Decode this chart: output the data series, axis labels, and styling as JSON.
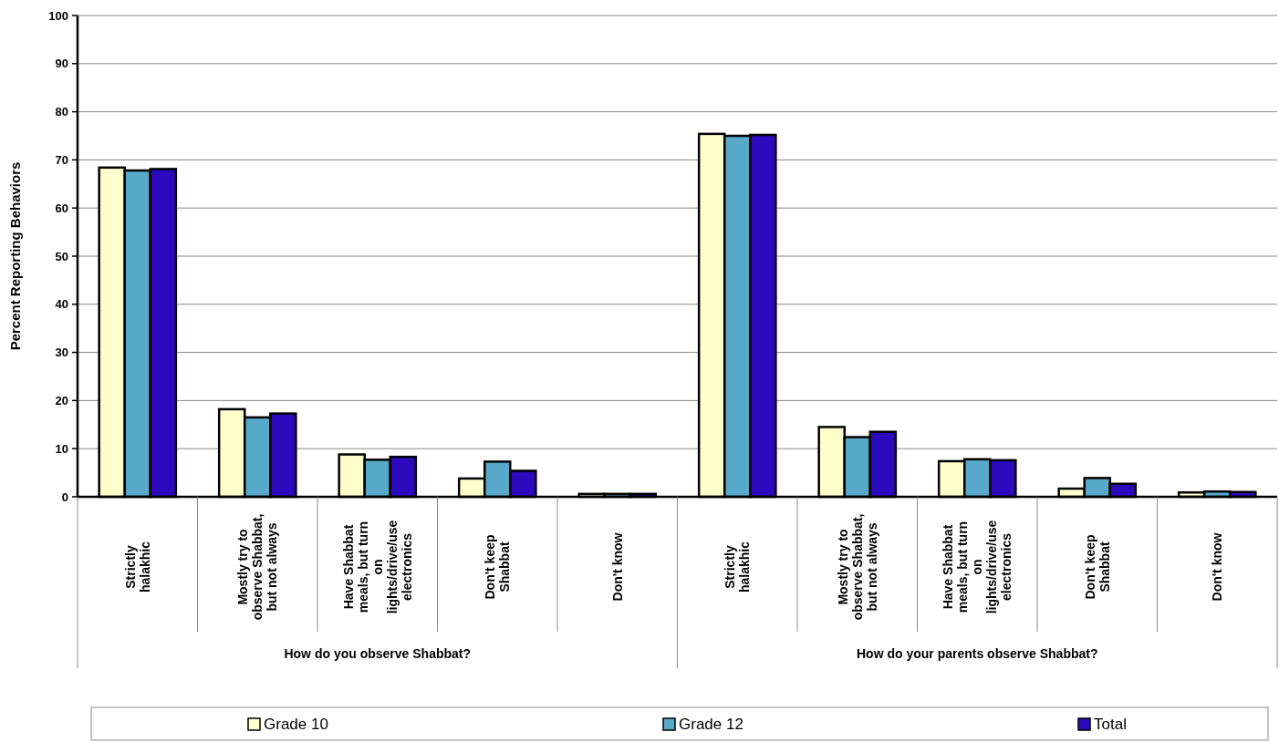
{
  "chart_data": {
    "type": "bar",
    "ylabel": "Percent Reporting Behaviors",
    "categories": [
      "Strictly halakhic",
      "Mostly try to observe Shabbat, but not always",
      "Have Shabbat meals, but turn on lights/drive/use electronics",
      "Don't keep Shabbat",
      "Don't know",
      "Strictly halakhic",
      "Mostly try to observe Shabbat, but not always",
      "Have Shabbat meals, but turn on lights/drive/use electronics",
      "Don't keep Shabbat",
      "Don't know"
    ],
    "series": [
      {
        "name": "Grade 10",
        "color": "#ffffcc",
        "values": [
          68.4,
          18.2,
          8.8,
          3.8,
          0.6,
          75.4,
          14.5,
          7.4,
          1.7,
          0.9
        ]
      },
      {
        "name": "Grade 12",
        "color": "#58a9c9",
        "values": [
          67.8,
          16.5,
          7.7,
          7.3,
          0.6,
          75.0,
          12.4,
          7.8,
          3.9,
          1.1
        ]
      },
      {
        "name": "Total",
        "color": "#2a0abc",
        "values": [
          68.1,
          17.3,
          8.3,
          5.4,
          0.6,
          75.2,
          13.5,
          7.6,
          2.7,
          1.0
        ]
      }
    ],
    "annotations": [
      "How do you observe Shabbat?",
      "How do your parents observe Shabbat?"
    ],
    "ylim": [
      0,
      100
    ],
    "yticks": [
      0,
      10,
      20,
      30,
      40,
      50,
      60,
      70,
      80,
      90,
      100
    ],
    "grid": "y",
    "legend": "bottom"
  }
}
